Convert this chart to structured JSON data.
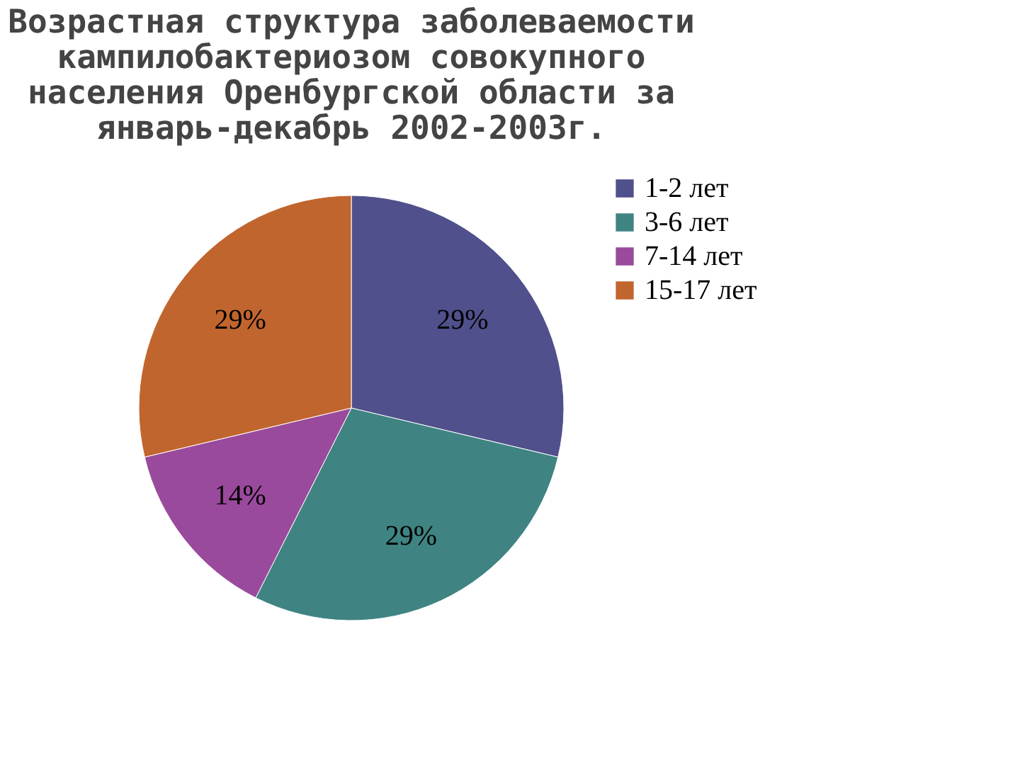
{
  "chart_data": {
    "type": "pie",
    "title": "Возрастная структура заболеваемости кампилобактериозом совокупного населения Оренбургской области за январь-декабрь 2002-2003г.",
    "categories": [
      "1-2 лет",
      "3-6 лет",
      "7-14 лет",
      "15-17 лет"
    ],
    "values": [
      29,
      29,
      14,
      29
    ],
    "value_labels": [
      "29%",
      "29%",
      "14%",
      "29%"
    ],
    "colors": [
      "#50508c",
      "#3f8482",
      "#9a4a9c",
      "#c1652e"
    ],
    "legend": "right"
  }
}
